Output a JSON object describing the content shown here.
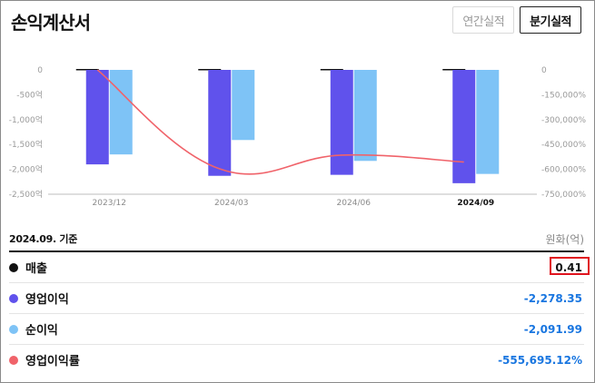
{
  "title": "손익계산서",
  "tabs": [
    {
      "label": "연간실적",
      "active": false
    },
    {
      "label": "분기실적",
      "active": true
    }
  ],
  "chart_data": {
    "type": "bar",
    "categories": [
      "2023/12",
      "2024/03",
      "2024/06",
      "2024/09"
    ],
    "highlight_category": "2024/09",
    "left_axis": {
      "ticks": [
        "0",
        "-500억",
        "-1,000억",
        "-1,500억",
        "-2,000억",
        "-2,500억"
      ],
      "ylim": [
        -2500,
        0
      ]
    },
    "right_axis": {
      "ticks": [
        "0",
        "-150,000%",
        "-300,000%",
        "-450,000%",
        "-600,000%",
        "-750,000%"
      ],
      "ylim": [
        -750000,
        0
      ]
    },
    "series": [
      {
        "name": "매출",
        "kind": "bar",
        "axis": "left",
        "color": "#111111",
        "values": [
          0.5,
          0.4,
          0.4,
          0.41
        ]
      },
      {
        "name": "영업이익",
        "kind": "bar",
        "axis": "left",
        "color": "#6052ec",
        "values": [
          -1900,
          -2130,
          -2110,
          -2278.35
        ]
      },
      {
        "name": "순이익",
        "kind": "bar",
        "axis": "left",
        "color": "#7ec3f6",
        "values": [
          -1700,
          -1410,
          -1830,
          -2091.99
        ]
      },
      {
        "name": "영업이익률",
        "kind": "line",
        "axis": "right",
        "color": "#f0636a",
        "values": [
          0,
          -597000,
          -514000,
          -555695.12
        ]
      }
    ]
  },
  "summary": {
    "basis": "2024.09. 기준",
    "unit": "원화(억)",
    "rows": [
      {
        "label": "매출",
        "value": "0.41",
        "color": "#111111",
        "value_color": "#111111",
        "highlight": true
      },
      {
        "label": "영업이익",
        "value": "-2,278.35",
        "color": "#6052ec",
        "value_color": "#1976e0",
        "highlight": false
      },
      {
        "label": "순이익",
        "value": "-2,091.99",
        "color": "#7ec3f6",
        "value_color": "#1976e0",
        "highlight": false
      },
      {
        "label": "영업이익률",
        "value": "-555,695.12%",
        "color": "#f0636a",
        "value_color": "#1976e0",
        "highlight": false
      }
    ]
  }
}
